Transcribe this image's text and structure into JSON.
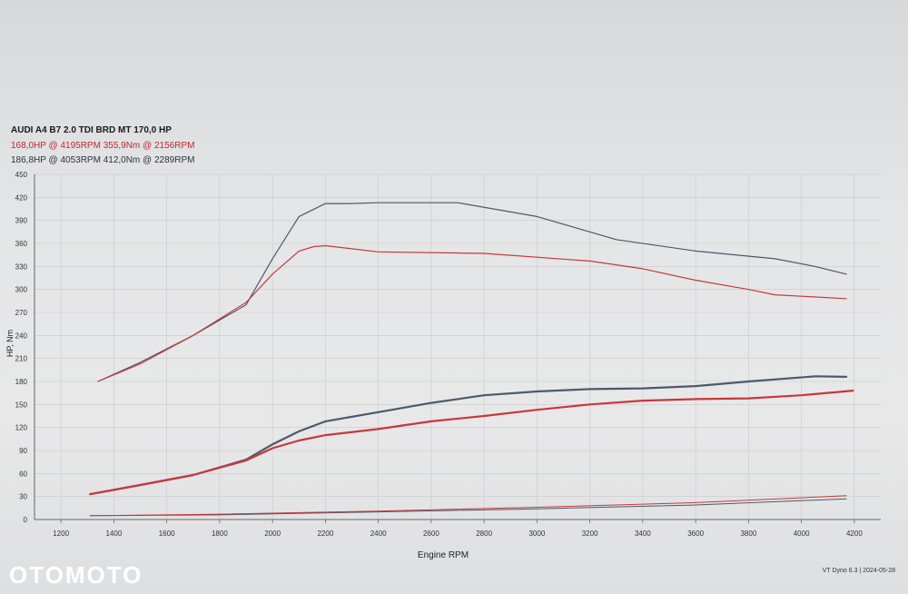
{
  "header": {
    "title": "AUDI A4 B7 2.0 TDI BRD MT 170,0 HP",
    "line1": "168,0HP @ 4195RPM 355,9Nm @ 2156RPM",
    "line2": "186,8HP @ 4053RPM 412,0Nm @ 2289RPM"
  },
  "watermark": "OTOMOTO",
  "footer": {
    "software": "VT Dyno 6.3",
    "date": "2024-05-28"
  },
  "colors": {
    "red": "#c8383c",
    "blue": "#4a5a6e",
    "grid": "#c9c9cc"
  },
  "chart_data": {
    "type": "line",
    "xlabel": "Engine RPM",
    "ylabel": "HP, Nm",
    "xlim": [
      1100,
      4300
    ],
    "ylim": [
      0,
      450
    ],
    "xticks": [
      1200,
      1400,
      1600,
      1800,
      2000,
      2200,
      2400,
      2600,
      2800,
      3000,
      3200,
      3400,
      3600,
      3800,
      4000,
      4200
    ],
    "yticks": [
      0,
      30,
      60,
      90,
      120,
      150,
      180,
      210,
      240,
      270,
      300,
      330,
      360,
      390,
      420,
      450
    ],
    "grid": true,
    "series": [
      {
        "color": "#4a5a6e",
        "width": 1.2,
        "x": [
          1340,
          1500,
          1700,
          1900,
          2000,
          2100,
          2200,
          2289,
          2400,
          2700,
          3000,
          3300,
          3600,
          3900,
          4050,
          4170
        ],
        "values": [
          180,
          205,
          240,
          280,
          340,
          395,
          412,
          412,
          413,
          413,
          395,
          365,
          350,
          340,
          330,
          320
        ]
      },
      {
        "color": "#c8383c",
        "width": 1.2,
        "x": [
          1340,
          1500,
          1700,
          1900,
          2000,
          2100,
          2156,
          2200,
          2400,
          2800,
          3200,
          3400,
          3600,
          3800,
          3900,
          4170
        ],
        "values": [
          180,
          203,
          240,
          283,
          320,
          350,
          355.9,
          357,
          349,
          347,
          337,
          327,
          312,
          300,
          293,
          288
        ]
      },
      {
        "color": "#4a5a6e",
        "width": 2.2,
        "x": [
          1310,
          1500,
          1700,
          1900,
          2000,
          2100,
          2200,
          2400,
          2600,
          2800,
          3000,
          3200,
          3400,
          3600,
          3800,
          4053,
          4170
        ],
        "values": [
          33,
          45,
          58,
          78,
          98,
          115,
          128,
          140,
          152,
          162,
          167,
          170,
          171,
          174,
          180,
          186.8,
          186
        ]
      },
      {
        "color": "#c8383c",
        "width": 2.2,
        "x": [
          1310,
          1500,
          1700,
          1900,
          2000,
          2100,
          2200,
          2400,
          2600,
          2800,
          3000,
          3200,
          3400,
          3600,
          3800,
          4000,
          4195
        ],
        "values": [
          33,
          45,
          58,
          77,
          93,
          103,
          110,
          118,
          128,
          135,
          143,
          150,
          155,
          157,
          158,
          162,
          168
        ]
      },
      {
        "color": "#4a5a6e",
        "width": 1,
        "x": [
          1310,
          1800,
          2400,
          3000,
          3600,
          4170
        ],
        "values": [
          5,
          6,
          10,
          14,
          19,
          27
        ]
      },
      {
        "color": "#c8383c",
        "width": 1,
        "x": [
          1310,
          1800,
          2400,
          3000,
          3600,
          4170
        ],
        "values": [
          5,
          7,
          11,
          16,
          22,
          31
        ]
      }
    ]
  }
}
